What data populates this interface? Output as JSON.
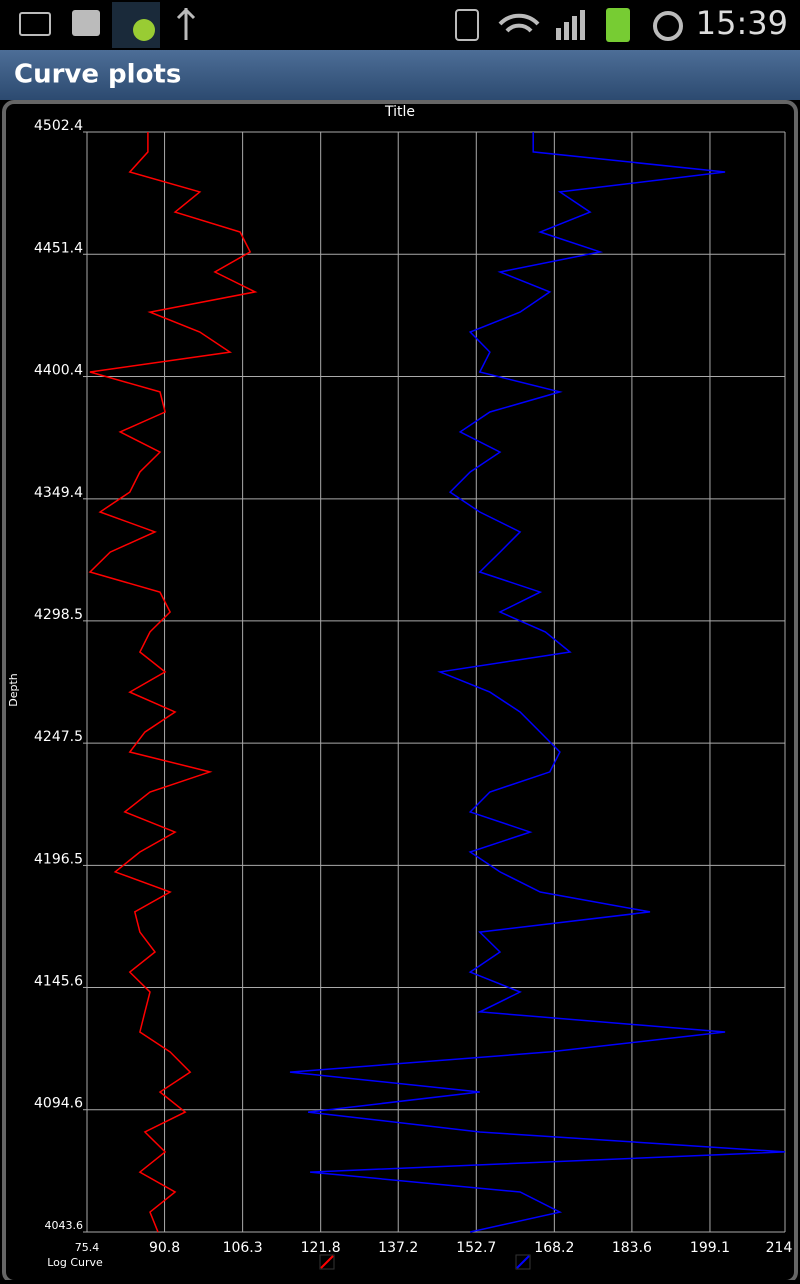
{
  "status_bar": {
    "time": "15:39"
  },
  "app_bar": {
    "title": "Curve plots"
  },
  "chart_data": {
    "type": "line",
    "title": "Title",
    "y_label": "Depth",
    "x_label": "Log Curve",
    "xlim": [
      75.4,
      214
    ],
    "xticks": [
      75.4,
      90.8,
      106.3,
      121.8,
      137.2,
      152.7,
      168.2,
      183.6,
      199.1,
      214
    ],
    "ylim": [
      4043.6,
      4502.4
    ],
    "yticks": [
      4043.6,
      4094.6,
      4145.6,
      4196.5,
      4247.5,
      4298.5,
      4349.4,
      4400.4,
      4451.4,
      4502.4
    ],
    "grid": true,
    "y": [
      4502.4,
      4494.1,
      4485.7,
      4477.4,
      4469.0,
      4460.7,
      4452.4,
      4444.0,
      4435.7,
      4427.3,
      4419.0,
      4410.6,
      4402.3,
      4394.0,
      4385.6,
      4377.3,
      4368.9,
      4360.6,
      4352.2,
      4343.9,
      4335.6,
      4327.2,
      4318.9,
      4310.5,
      4302.2,
      4293.9,
      4285.5,
      4277.2,
      4268.8,
      4260.5,
      4252.1,
      4243.8,
      4235.5,
      4227.1,
      4218.8,
      4210.4,
      4202.1,
      4193.8,
      4185.4,
      4177.1,
      4168.7,
      4160.4,
      4152.0,
      4143.7,
      4135.4,
      4127.0,
      4118.7,
      4110.3,
      4102.0,
      4093.6,
      4085.3,
      4077.0,
      4068.6,
      4060.3,
      4051.9,
      4043.6
    ],
    "series": [
      {
        "color": "#ff0000",
        "values": [
          87.5,
          87.5,
          83.9,
          97.8,
          92.9,
          105.8,
          107.8,
          100.8,
          108.8,
          87.9,
          97.8,
          103.8,
          76.0,
          89.9,
          90.9,
          82.0,
          89.9,
          85.9,
          83.9,
          78.0,
          88.9,
          80.0,
          76.0,
          89.9,
          91.9,
          87.9,
          85.9,
          90.9,
          83.9,
          92.9,
          86.9,
          83.9,
          99.8,
          87.9,
          82.9,
          92.9,
          85.9,
          81.0,
          91.9,
          84.9,
          85.9,
          88.9,
          83.9,
          87.9,
          86.9,
          85.9,
          91.9,
          95.9,
          89.9,
          94.9,
          86.9,
          90.9,
          85.9,
          92.9,
          87.9,
          89.5
        ]
      },
      {
        "color": "#0000ff",
        "values": [
          164.0,
          164.0,
          202.1,
          169.3,
          175.3,
          165.4,
          177.3,
          157.4,
          167.3,
          161.4,
          151.5,
          155.4,
          153.4,
          169.3,
          155.4,
          149.5,
          157.4,
          151.5,
          147.5,
          153.4,
          161.4,
          157.4,
          153.4,
          165.4,
          157.4,
          166.4,
          171.3,
          145.5,
          155.4,
          161.4,
          165.4,
          169.3,
          167.3,
          155.4,
          151.5,
          163.4,
          151.5,
          157.4,
          165.4,
          187.2,
          153.4,
          157.4,
          151.5,
          161.4,
          153.4,
          202.1,
          167.3,
          115.7,
          153.4,
          119.3,
          153.4,
          214.0,
          119.7,
          161.4,
          169.3,
          151.5
        ]
      }
    ]
  }
}
